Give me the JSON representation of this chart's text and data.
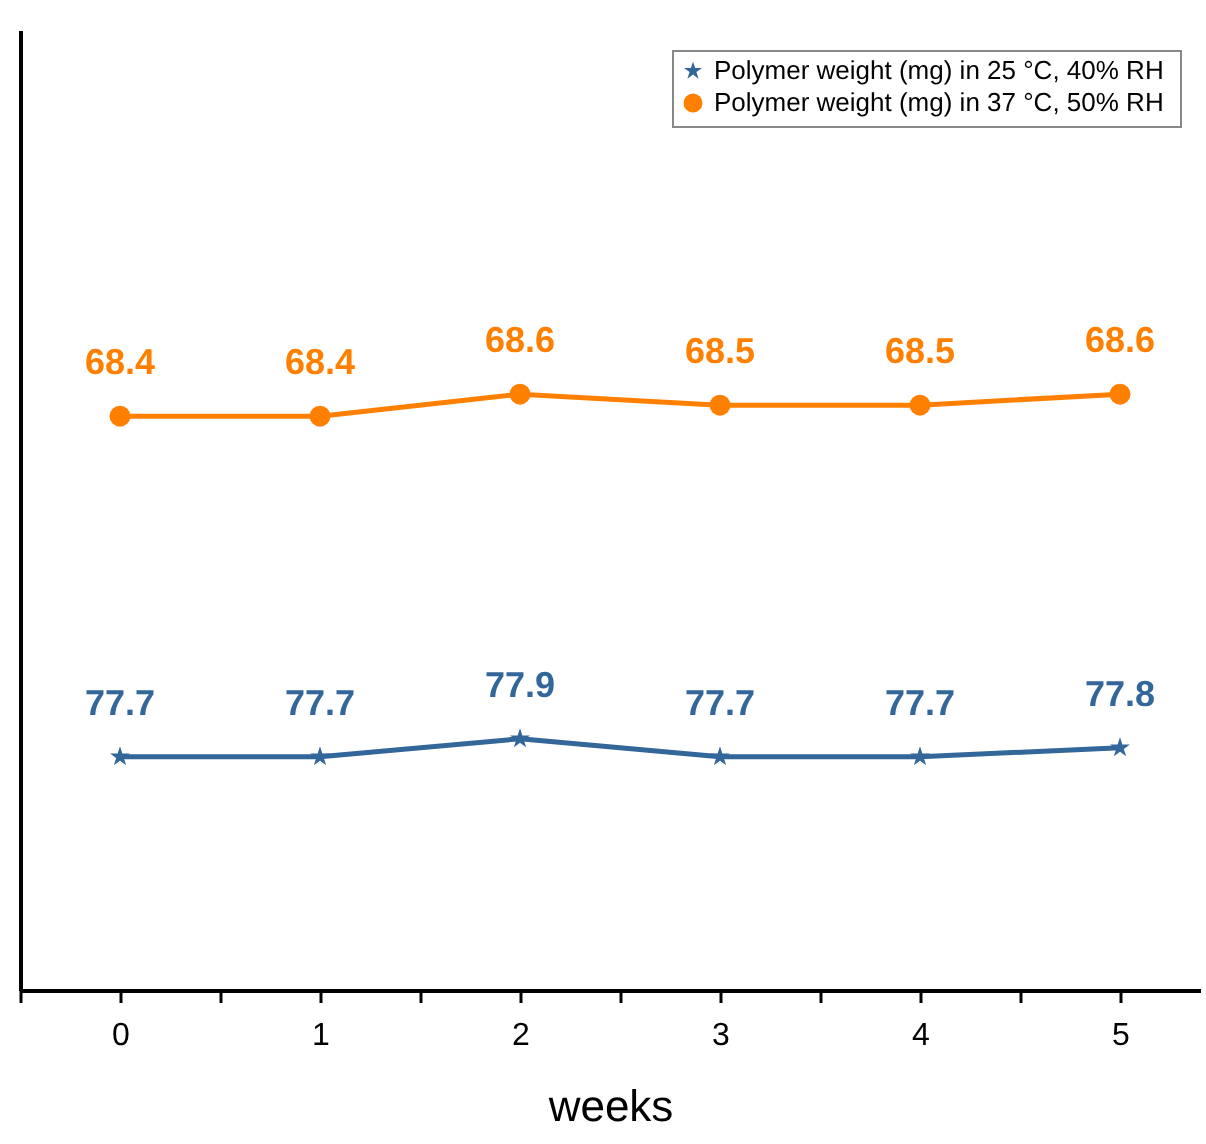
{
  "chart_data": {
    "type": "line",
    "xlabel": "weeks",
    "x": [
      0,
      1,
      2,
      3,
      4,
      5
    ],
    "xlim": [
      -0.5,
      5.4
    ],
    "xticks": [
      {
        "value": -0.5,
        "label": null
      },
      0,
      {
        "value": 0.5,
        "label": null
      },
      1,
      {
        "value": 1.5,
        "label": null
      },
      2,
      {
        "value": 2.5,
        "label": null
      },
      3,
      {
        "value": 3.5,
        "label": null
      },
      4,
      {
        "value": 4.5,
        "label": null
      },
      5
    ],
    "ylim": [
      75.1,
      85.8
    ],
    "y2lim": [
      63.2,
      71.9
    ],
    "series": [
      {
        "name": "Polymer weight (mg) in 25  °C, 40% RH",
        "color": "#336699",
        "marker": "star",
        "values": [
          77.7,
          77.7,
          77.9,
          77.7,
          77.7,
          77.8
        ]
      },
      {
        "name": "Polymer weight (mg) in 37  °C, 50% RH",
        "color": "#ff8000",
        "marker": "circle",
        "axis": "y2",
        "values": [
          68.4,
          68.4,
          68.6,
          68.5,
          68.5,
          68.6
        ]
      }
    ],
    "data_labels": true,
    "tick_labels": "x",
    "legend": "top right",
    "grid": false,
    "line_style": "solid"
  }
}
